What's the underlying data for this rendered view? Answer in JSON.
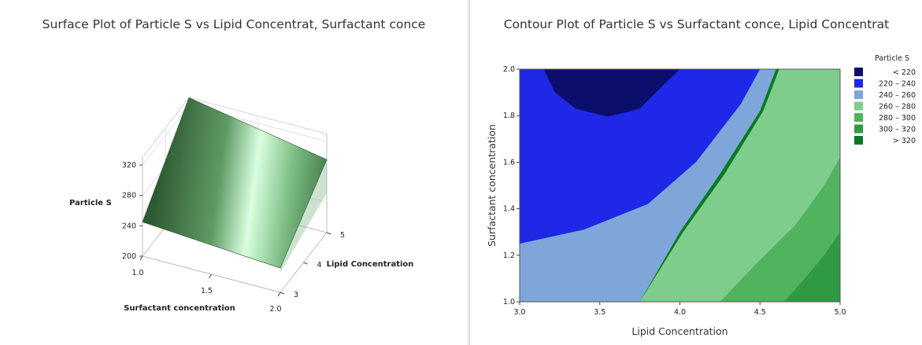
{
  "panels": {
    "surface_title": "Surface Plot of Particle S vs Lipid Concentrat, Surfactant conce",
    "contour_title": "Contour Plot of Particle S vs Surfactant conce, Lipid Concentrat"
  },
  "colors": {
    "dark_navy": "#0b0f6b",
    "blue": "#1e28e6",
    "light_blue": "#7ea6d8",
    "light_green": "#7fcd8c",
    "mid_green": "#52b35f",
    "green": "#2f9a42",
    "dark_green": "#087a22",
    "surface_dark": "#2e5a33",
    "surface_light": "#d9ffe0"
  },
  "chart_data": [
    {
      "type": "surface",
      "title": "Surface Plot of Particle S vs Lipid Concentrat, Surfactant conce",
      "xlabel": "Surfactant concentration",
      "ylabel": "Lipid Concentration",
      "zlabel": "Particle S",
      "x_ticks": [
        "1.0",
        "1.5",
        "2.0"
      ],
      "y_ticks": [
        "3",
        "4",
        "5"
      ],
      "z_ticks": [
        "200",
        "240",
        "280",
        "320"
      ],
      "xlim": [
        1.0,
        2.0
      ],
      "ylim": [
        3,
        5
      ],
      "zlim": [
        200,
        330
      ],
      "corners": [
        {
          "surfactant": 1.0,
          "lipid": 3,
          "particle_s": 245
        },
        {
          "surfactant": 2.0,
          "lipid": 3,
          "particle_s": 232
        },
        {
          "surfactant": 1.0,
          "lipid": 5,
          "particle_s": 330
        },
        {
          "surfactant": 2.0,
          "lipid": 5,
          "particle_s": 296
        }
      ]
    },
    {
      "type": "contour",
      "title": "Contour Plot of Particle S vs Surfactant conce, Lipid Concentrat",
      "xlabel": "Lipid Concentration",
      "ylabel": "Surfactant concentration",
      "x_ticks": [
        "3.0",
        "3.5",
        "4.0",
        "4.5",
        "5.0"
      ],
      "y_ticks": [
        "1.0",
        "1.2",
        "1.4",
        "1.6",
        "1.8",
        "2.0"
      ],
      "xlim": [
        3.0,
        5.0
      ],
      "ylim": [
        1.0,
        2.0
      ],
      "legend_title": "Particle S",
      "legend_position": "right",
      "levels": [
        {
          "label": "<  220",
          "color": "#0b0f6b"
        },
        {
          "label": "220  –  240",
          "color": "#1e28e6"
        },
        {
          "label": "240  –  260",
          "color": "#7ea6d8"
        },
        {
          "label": "260  –  280",
          "color": "#7fcd8c"
        },
        {
          "label": "280  –  300",
          "color": "#52b35f"
        },
        {
          "label": "300  –  320",
          "color": "#2f9a42"
        },
        {
          "label": ">  320",
          "color": "#087a22"
        }
      ],
      "regions": [
        {
          "level": "240  –  260",
          "points": [
            [
              3.0,
              1.0
            ],
            [
              3.75,
              1.0
            ],
            [
              4.0,
              1.3
            ],
            [
              4.25,
              1.55
            ],
            [
              4.5,
              1.82
            ],
            [
              4.6,
              2.0
            ],
            [
              3.0,
              2.0
            ]
          ]
        },
        {
          "level": "220  –  240",
          "points": [
            [
              3.0,
              1.25
            ],
            [
              3.4,
              1.31
            ],
            [
              3.8,
              1.42
            ],
            [
              4.1,
              1.6
            ],
            [
              4.38,
              1.85
            ],
            [
              4.5,
              2.0
            ],
            [
              3.0,
              2.0
            ]
          ]
        },
        {
          "level": "<  220",
          "points": [
            [
              3.15,
              2.0
            ],
            [
              3.22,
              1.9
            ],
            [
              3.35,
              1.83
            ],
            [
              3.55,
              1.795
            ],
            [
              3.75,
              1.83
            ],
            [
              3.85,
              1.9
            ],
            [
              4.0,
              2.0
            ]
          ]
        },
        {
          "level": "260  –  280",
          "points": [
            [
              3.75,
              1.0
            ],
            [
              5.0,
              1.0
            ],
            [
              5.0,
              2.0
            ],
            [
              4.62,
              2.0
            ],
            [
              4.52,
              1.82
            ],
            [
              4.28,
              1.55
            ],
            [
              4.02,
              1.3
            ]
          ]
        },
        {
          "level": "280  –  300",
          "points": [
            [
              4.25,
              1.0
            ],
            [
              5.0,
              1.0
            ],
            [
              5.0,
              1.62
            ],
            [
              4.9,
              1.5
            ],
            [
              4.72,
              1.33
            ],
            [
              4.5,
              1.18
            ]
          ]
        },
        {
          "level": "300  –  320",
          "points": [
            [
              4.65,
              1.0
            ],
            [
              5.0,
              1.0
            ],
            [
              5.0,
              1.3
            ],
            [
              4.9,
              1.2
            ],
            [
              4.78,
              1.1
            ]
          ]
        }
      ]
    }
  ]
}
